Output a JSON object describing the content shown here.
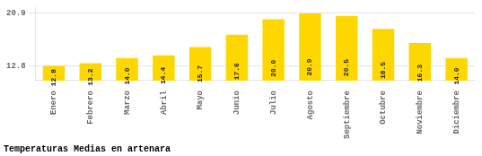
{
  "chart_data": {
    "type": "bar",
    "title": "Temperaturas Medias en artenara",
    "categories": [
      "Enero",
      "Febrero",
      "Marzo",
      "Abril",
      "Mayo",
      "Junio",
      "Julio",
      "Agosto",
      "Septiembre",
      "Octubre",
      "Noviembre",
      "Diciembre"
    ],
    "values": [
      12.8,
      13.2,
      14.0,
      14.4,
      15.7,
      17.6,
      20.0,
      20.9,
      20.5,
      18.5,
      16.3,
      14.0
    ],
    "value_labels": [
      "12.8",
      "13.2",
      "14.0",
      "14.4",
      "15.7",
      "17.6",
      "20.0",
      "20.9",
      "20.5",
      "18.5",
      "16.3",
      "14.0"
    ],
    "color": "#FFD700",
    "ylim": [
      10.5,
      21.8
    ],
    "yticks": [
      12.8,
      20.9
    ],
    "grid": true,
    "data_labels": true
  }
}
